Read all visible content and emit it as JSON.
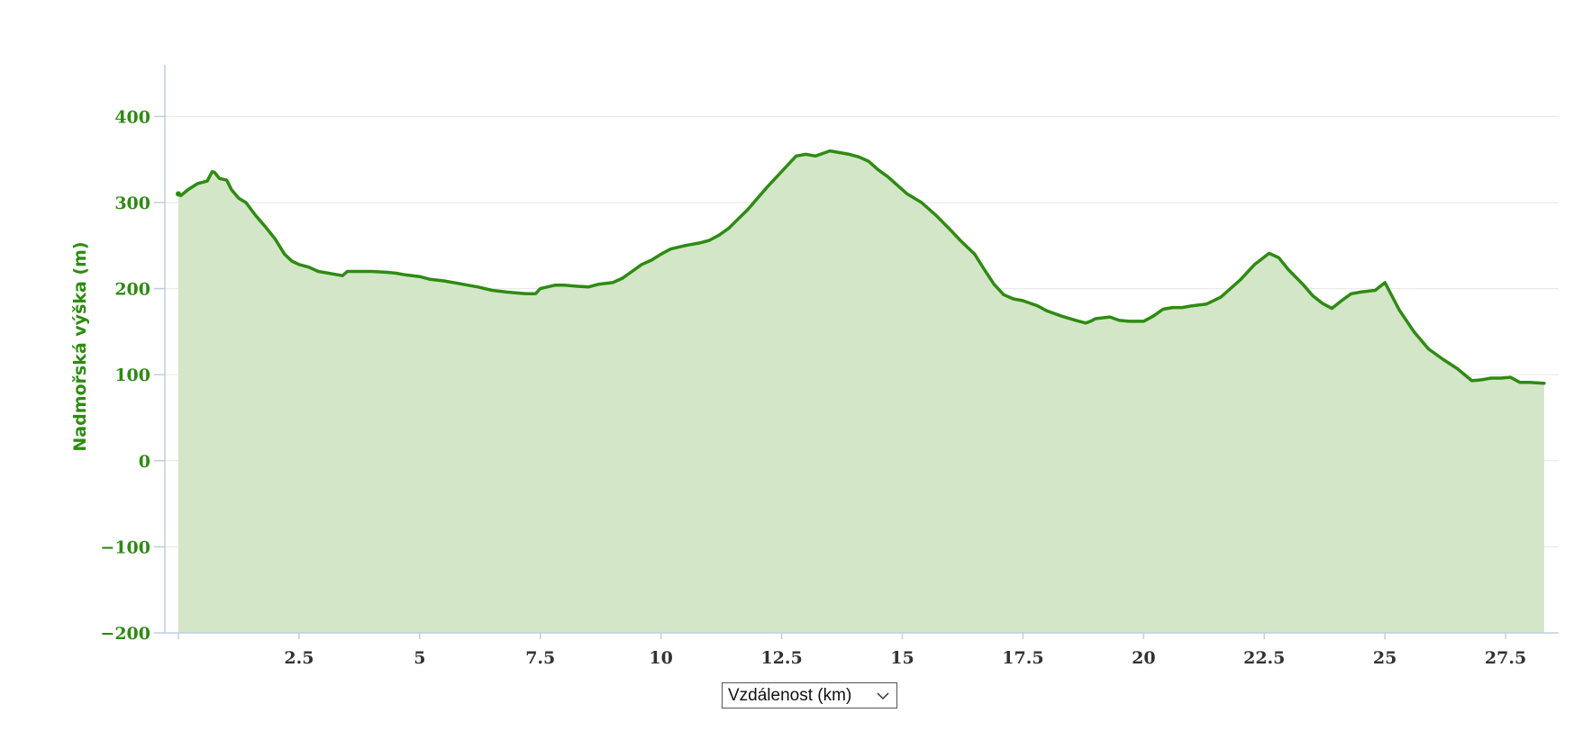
{
  "chart_data": {
    "type": "area",
    "title": "",
    "ylabel": "Nadmořská výška (m)",
    "xlabel": "Vzdálenost (km)",
    "xlim": [
      -0.28,
      28.6
    ],
    "ylim": [
      -200,
      460
    ],
    "x_ticks": [
      2.5,
      5,
      7.5,
      10,
      12.5,
      15,
      17.5,
      20,
      22.5,
      25,
      27.5
    ],
    "x_tick_labels": [
      "2.5",
      "5",
      "7.5",
      "10",
      "12.5",
      "15",
      "17.5",
      "20",
      "22.5",
      "25",
      "27.5"
    ],
    "y_ticks": [
      -200,
      -100,
      0,
      100,
      200,
      300,
      400
    ],
    "y_tick_labels": [
      "−200",
      "−100",
      "0",
      "100",
      "200",
      "300",
      "400"
    ],
    "grid": true,
    "colors": {
      "line": "#2e8b12",
      "fill": "#d3e6c8",
      "grid": "#e6e6e6",
      "axis": "#c0cde0"
    },
    "series": [
      {
        "x": [
          0,
          0.05,
          0.2,
          0.4,
          0.6,
          0.7,
          0.75,
          0.85,
          1.0,
          1.1,
          1.25,
          1.4,
          1.6,
          1.8,
          2.0,
          2.2,
          2.35,
          2.5,
          2.7,
          2.9,
          3.1,
          3.4,
          3.5,
          3.8,
          4.0,
          4.3,
          4.5,
          4.7,
          5.0,
          5.2,
          5.5,
          5.8,
          6.0,
          6.2,
          6.5,
          6.8,
          7.0,
          7.2,
          7.4,
          7.5,
          7.8,
          8.0,
          8.2,
          8.5,
          8.7,
          9.0,
          9.2,
          9.4,
          9.6,
          9.8,
          10.0,
          10.2,
          10.5,
          10.8,
          11.0,
          11.2,
          11.4,
          11.6,
          11.8,
          12.0,
          12.2,
          12.4,
          12.6,
          12.8,
          13.0,
          13.2,
          13.5,
          13.7,
          13.9,
          14.1,
          14.3,
          14.5,
          14.7,
          14.9,
          15.1,
          15.4,
          15.7,
          16.0,
          16.2,
          16.5,
          16.7,
          16.9,
          17.1,
          17.3,
          17.5,
          17.8,
          18.0,
          18.3,
          18.6,
          18.8,
          18.9,
          19.0,
          19.3,
          19.5,
          19.7,
          20.0,
          20.2,
          20.4,
          20.6,
          20.8,
          21.0,
          21.3,
          21.6,
          21.8,
          22.0,
          22.3,
          22.6,
          22.8,
          23.0,
          23.3,
          23.5,
          23.7,
          23.9,
          24.1,
          24.3,
          24.5,
          24.8,
          25.0,
          25.3,
          25.6,
          25.9,
          26.2,
          26.5,
          26.8,
          27.0,
          27.2,
          27.4,
          27.6,
          27.8,
          28.0,
          28.3
        ],
        "y": [
          310,
          308,
          315,
          322,
          325,
          336,
          335,
          328,
          326,
          315,
          305,
          300,
          285,
          272,
          258,
          240,
          232,
          228,
          225,
          220,
          218,
          215,
          220,
          220,
          220,
          219,
          218,
          216,
          214,
          211,
          209,
          206,
          204,
          202,
          198,
          196,
          195,
          194,
          194,
          200,
          204,
          204,
          203,
          202,
          205,
          207,
          212,
          220,
          228,
          233,
          240,
          246,
          250,
          253,
          256,
          262,
          270,
          281,
          292,
          305,
          318,
          330,
          342,
          354,
          356,
          354,
          360,
          358,
          356,
          353,
          348,
          338,
          330,
          320,
          310,
          300,
          285,
          268,
          256,
          240,
          222,
          205,
          193,
          188,
          186,
          180,
          174,
          168,
          163,
          160,
          162,
          165,
          167,
          163,
          162,
          162,
          168,
          176,
          178,
          178,
          180,
          182,
          190,
          200,
          210,
          228,
          241,
          236,
          222,
          205,
          192,
          183,
          177,
          186,
          194,
          196,
          198,
          207,
          175,
          150,
          130,
          118,
          107,
          93,
          94,
          96,
          96,
          97,
          91,
          91,
          90
        ]
      }
    ]
  }
}
